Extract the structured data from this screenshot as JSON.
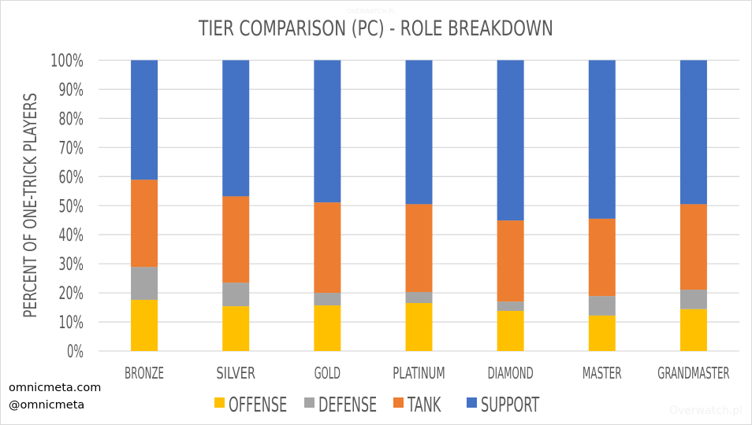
{
  "chart_data": {
    "type": "bar",
    "stacked": "percent",
    "title": "TIER COMPARISON (PC) - ROLE BREAKDOWN",
    "xlabel": "",
    "ylabel": "PERCENT OF ONE-TRICK PLAYERS",
    "ylim": [
      0,
      100
    ],
    "yticks": [
      "0%",
      "10%",
      "20%",
      "30%",
      "40%",
      "50%",
      "60%",
      "70%",
      "80%",
      "90%",
      "100%"
    ],
    "grid": true,
    "legend_position": "bottom",
    "categories": [
      "BRONZE",
      "SILVER",
      "GOLD",
      "PLATINUM",
      "DIAMOND",
      "MASTER",
      "GRANDMASTER"
    ],
    "series": [
      {
        "name": "OFFENSE",
        "color": "#ffc000",
        "values": [
          17.6,
          15.4,
          15.7,
          16.5,
          13.8,
          12.2,
          14.4
        ]
      },
      {
        "name": "DEFENSE",
        "color": "#a5a5a5",
        "values": [
          11.3,
          8.1,
          4.3,
          3.8,
          3.2,
          6.7,
          6.7
        ]
      },
      {
        "name": "TANK",
        "color": "#ed7d31",
        "values": [
          30.0,
          29.7,
          31.1,
          30.2,
          27.9,
          26.6,
          29.4
        ]
      },
      {
        "name": "SUPPORT",
        "color": "#4472c4",
        "values": [
          41.1,
          46.8,
          48.9,
          49.5,
          55.1,
          54.5,
          49.5
        ]
      }
    ]
  },
  "credits": {
    "site": "omnicmeta.com",
    "handle": "@omnicmeta"
  },
  "watermarks": {
    "bottom_right": "Overwatch.pl",
    "top": "OVERWATCH.PL"
  }
}
